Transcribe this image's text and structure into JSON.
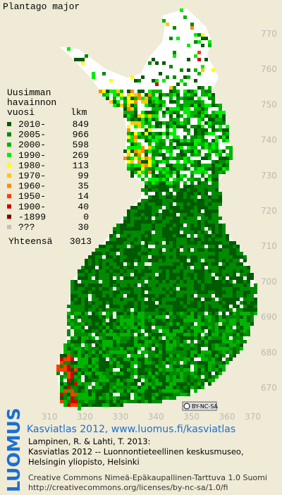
{
  "title": "Plantago major",
  "legend": {
    "heading": [
      "Uusimman",
      "havainnon",
      "vuosi"
    ],
    "count_header": "lkm",
    "rows": [
      {
        "label": "2010-",
        "count": 849,
        "color": "#005a00"
      },
      {
        "label": "2005-",
        "count": 966,
        "color": "#008a00"
      },
      {
        "label": "2000-",
        "count": 598,
        "color": "#00b400"
      },
      {
        "label": "1990-",
        "count": 269,
        "color": "#00ee00"
      },
      {
        "label": "1980-",
        "count": 113,
        "color": "#ffff00"
      },
      {
        "label": "1970-",
        "count": 99,
        "color": "#ffc800"
      },
      {
        "label": "1960-",
        "count": 35,
        "color": "#ff8c00"
      },
      {
        "label": "1950-",
        "count": 14,
        "color": "#ff3c00"
      },
      {
        "label": "1900-",
        "count": 40,
        "color": "#d20000"
      },
      {
        "label": "-1899",
        "count": 0,
        "color": "#820000"
      },
      {
        "label": "???",
        "count": 30,
        "color": "#c0c0c0"
      }
    ],
    "total_label": "Yhteensä",
    "total": 3013
  },
  "grid": {
    "yticks": [
      770,
      760,
      750,
      740,
      730,
      720,
      710,
      700,
      690,
      680,
      670
    ],
    "xticks": [
      310,
      320,
      330,
      340,
      350,
      360,
      370
    ]
  },
  "license_badge": "BY-NC-SA",
  "logo": "LUOMUS",
  "credits": {
    "link": "Kasviatlas 2012, www.luomus.fi/kasviatlas",
    "citation": [
      "Lampinen, R. & Lahti, T. 2013:",
      "Kasviatlas 2012 -- Luonnontieteellinen keskusmuseo,",
      "Helsingin yliopisto, Helsinki"
    ],
    "license": [
      "Creative Commons Nimeä-Epäkaupallinen-Tarttuva 1.0 Suomi",
      "http://creativecommons.org/licenses/by-nc-sa/1.0/fi"
    ]
  }
}
